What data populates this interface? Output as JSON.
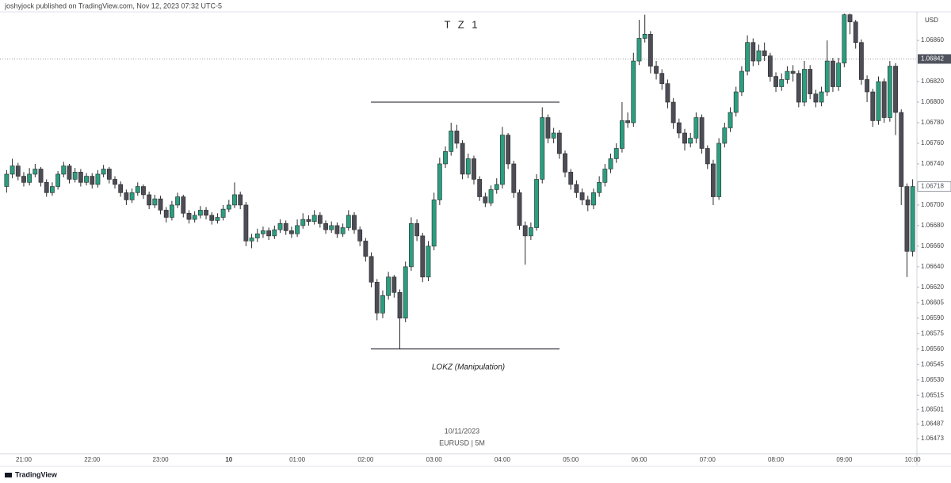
{
  "header": "joshyjock published on TradingView.com, Nov 12, 2023 07:32 UTC-5",
  "footer": "TradingView",
  "chart_data": {
    "type": "candlestick",
    "title": "T Z 1",
    "annotation": "LOKZ (Manipulation)",
    "watermark_date": "10/11/2023",
    "watermark_symbol": "EURUSD | 5M",
    "currency": "USD",
    "up_color": "#2b9e80",
    "down_color": "#4d4d57",
    "wick_color": "#2a2a2a",
    "grid": false,
    "levels": [
      1.068,
      1.0656
    ],
    "price_labels": [
      {
        "value": 1.06842,
        "label": "1.06842"
      },
      {
        "value": 1.06718,
        "label": "1.06718"
      }
    ],
    "ylim": [
      1.06459,
      1.06887
    ],
    "yticks": [
      {
        "value": 1.0686,
        "label": "1.06860"
      },
      {
        "value": 1.0682,
        "label": "1.06820"
      },
      {
        "value": 1.068,
        "label": "1.06800"
      },
      {
        "value": 1.0678,
        "label": "1.06780"
      },
      {
        "value": 1.0676,
        "label": "1.06760"
      },
      {
        "value": 1.0674,
        "label": "1.06740"
      },
      {
        "value": 1.067,
        "label": "1.06700"
      },
      {
        "value": 1.0668,
        "label": "1.06680"
      },
      {
        "value": 1.0666,
        "label": "1.06660"
      },
      {
        "value": 1.0664,
        "label": "1.06640"
      },
      {
        "value": 1.0662,
        "label": "1.06620"
      },
      1.06605,
      {
        "value": 1.0659,
        "label": "1.06590"
      },
      1.06575,
      {
        "value": 1.0656,
        "label": "1.06560"
      },
      1.06545,
      {
        "value": 1.0653,
        "label": "1.06530"
      },
      1.06515,
      1.06501,
      1.06487,
      1.06473
    ],
    "categories": [
      null,
      null,
      null,
      "21:00",
      null,
      null,
      null,
      null,
      null,
      null,
      null,
      null,
      null,
      null,
      null,
      "22:00",
      null,
      null,
      null,
      null,
      null,
      null,
      null,
      null,
      null,
      null,
      null,
      "23:00",
      null,
      null,
      null,
      null,
      null,
      null,
      null,
      null,
      null,
      null,
      null,
      "10",
      null,
      null,
      null,
      null,
      null,
      null,
      null,
      null,
      null,
      null,
      null,
      "01:00",
      null,
      null,
      null,
      null,
      null,
      null,
      null,
      null,
      null,
      null,
      null,
      "02:00",
      null,
      null,
      null,
      null,
      null,
      null,
      null,
      null,
      null,
      null,
      null,
      "03:00",
      null,
      null,
      null,
      null,
      null,
      null,
      null,
      null,
      null,
      null,
      null,
      "04:00",
      null,
      null,
      null,
      null,
      null,
      null,
      null,
      null,
      null,
      null,
      null,
      "05:00",
      null,
      null,
      null,
      null,
      null,
      null,
      null,
      null,
      null,
      null,
      null,
      "06:00",
      null,
      null,
      null,
      null,
      null,
      null,
      null,
      null,
      null,
      null,
      null,
      "07:00",
      null,
      null,
      null,
      null,
      null,
      null,
      null,
      null,
      null,
      null,
      null,
      "08:00",
      null,
      null,
      null,
      null,
      null,
      null,
      null,
      null,
      null,
      null,
      null,
      "09:00",
      null,
      null,
      null,
      null,
      null,
      null,
      null,
      null,
      null,
      null,
      null,
      "10:00"
    ],
    "open": [
      1.06718,
      1.0673,
      1.06738,
      1.06728,
      1.06722,
      1.0673,
      1.06735,
      1.06722,
      1.06712,
      1.06718,
      1.0673,
      1.06738,
      1.06725,
      1.06732,
      1.06722,
      1.06728,
      1.0672,
      1.0673,
      1.06735,
      1.06725,
      1.0672,
      1.06712,
      1.06705,
      1.06712,
      1.06718,
      1.0671,
      1.067,
      1.06706,
      1.06695,
      1.06688,
      1.067,
      1.06708,
      1.06692,
      1.06686,
      1.0669,
      1.06695,
      1.0669,
      1.06685,
      1.06688,
      1.06696,
      1.067,
      1.0671,
      1.067,
      1.06665,
      1.06668,
      1.06672,
      1.06675,
      1.0667,
      1.06676,
      1.06682,
      1.06675,
      1.06672,
      1.0668,
      1.06686,
      1.06684,
      1.0669,
      1.06682,
      1.06676,
      1.0668,
      1.06672,
      1.06678,
      1.0669,
      1.06676,
      1.06665,
      1.0665,
      1.06625,
      1.06595,
      1.06612,
      1.0663,
      1.06615,
      1.0659,
      1.0664,
      1.06682,
      1.0667,
      1.0663,
      1.0666,
      1.06705,
      1.0674,
      1.06752,
      1.06772,
      1.0676,
      1.0673,
      1.06745,
      1.06725,
      1.06708,
      1.06702,
      1.06715,
      1.0672,
      1.06768,
      1.0674,
      1.06712,
      1.0668,
      1.0667,
      1.06678,
      1.06725,
      1.06785,
      1.06765,
      1.0677,
      1.0675,
      1.06732,
      1.0672,
      1.06712,
      1.06705,
      1.067,
      1.06712,
      1.06722,
      1.06735,
      1.06745,
      1.06755,
      1.06782,
      1.0678,
      1.0684,
      1.06862,
      1.06866,
      1.06835,
      1.06828,
      1.06818,
      1.068,
      1.0678,
      1.0677,
      1.0676,
      1.06765,
      1.06785,
      1.06755,
      1.0674,
      1.06708,
      1.0676,
      1.06775,
      1.0679,
      1.0681,
      1.0683,
      1.06858,
      1.0684,
      1.0685,
      1.06845,
      1.06825,
      1.06815,
      1.06822,
      1.0683,
      1.06828,
      1.068,
      1.06832,
      1.06808,
      1.068,
      1.0681,
      1.0684,
      1.06815,
      1.06838,
      1.06885,
      1.06878,
      1.06858,
      1.06822,
      1.0681,
      1.06782,
      1.0682,
      1.06785,
      1.06835,
      1.0679,
      1.06718,
      1.06655
    ],
    "high": [
      1.06734,
      1.06745,
      1.06741,
      1.06732,
      1.06736,
      1.0674,
      1.06737,
      1.06725,
      1.06722,
      1.06733,
      1.06742,
      1.0674,
      1.06736,
      1.06735,
      1.06731,
      1.06731,
      1.06734,
      1.06739,
      1.06737,
      1.06728,
      1.06723,
      1.06715,
      1.06716,
      1.06722,
      1.0672,
      1.06713,
      1.0671,
      1.06709,
      1.06698,
      1.06704,
      1.06712,
      1.0671,
      1.06695,
      1.06694,
      1.06699,
      1.06698,
      1.06693,
      1.06692,
      1.067,
      1.06705,
      1.06722,
      1.06713,
      1.06703,
      1.06672,
      1.06677,
      1.06679,
      1.06678,
      1.0668,
      1.06686,
      1.06685,
      1.06679,
      1.06686,
      1.06692,
      1.0669,
      1.06695,
      1.06693,
      1.06685,
      1.06684,
      1.06683,
      1.06682,
      1.06695,
      1.06693,
      1.06679,
      1.06668,
      1.06654,
      1.06628,
      1.06617,
      1.06635,
      1.06632,
      1.06618,
      1.06645,
      1.06688,
      1.06686,
      1.06673,
      1.06665,
      1.06712,
      1.06746,
      1.06757,
      1.0678,
      1.06778,
      1.06763,
      1.0675,
      1.06748,
      1.06728,
      1.06712,
      1.06719,
      1.06726,
      1.06776,
      1.0677,
      1.06743,
      1.06715,
      1.06684,
      1.06683,
      1.0673,
      1.06795,
      1.06788,
      1.06775,
      1.06773,
      1.06753,
      1.06735,
      1.06724,
      1.06716,
      1.06709,
      1.06716,
      1.06728,
      1.0674,
      1.0675,
      1.0676,
      1.068,
      1.0679,
      1.06848,
      1.0688,
      1.06885,
      1.06869,
      1.0684,
      1.06832,
      1.06822,
      1.06804,
      1.06784,
      1.06774,
      1.0677,
      1.0679,
      1.06788,
      1.06758,
      1.06744,
      1.06765,
      1.0678,
      1.06795,
      1.06815,
      1.06835,
      1.06865,
      1.06862,
      1.06856,
      1.06858,
      1.06848,
      1.06829,
      1.06828,
      1.06835,
      1.06836,
      1.06831,
      1.0684,
      1.06836,
      1.06812,
      1.06815,
      1.0686,
      1.06843,
      1.06843,
      1.06886,
      1.06886,
      1.0688,
      1.06861,
      1.06826,
      1.06813,
      1.06825,
      1.06823,
      1.0684,
      1.06838,
      1.06793,
      1.06721,
      1.06725
    ],
    "low": [
      1.06712,
      1.06726,
      1.06724,
      1.06718,
      1.06719,
      1.06727,
      1.06718,
      1.06708,
      1.06709,
      1.06715,
      1.06727,
      1.06721,
      1.06722,
      1.06718,
      1.06719,
      1.06716,
      1.06717,
      1.06727,
      1.06721,
      1.06716,
      1.06708,
      1.067,
      1.06702,
      1.06709,
      1.06706,
      1.06696,
      1.06697,
      1.06691,
      1.06683,
      1.06685,
      1.06697,
      1.06688,
      1.06682,
      1.06683,
      1.06687,
      1.06686,
      1.06681,
      1.06682,
      1.06685,
      1.06693,
      1.06697,
      1.06696,
      1.0666,
      1.06658,
      1.06664,
      1.06668,
      1.06666,
      1.06667,
      1.06673,
      1.06671,
      1.06668,
      1.06669,
      1.06677,
      1.0668,
      1.06681,
      1.06678,
      1.06672,
      1.06673,
      1.06668,
      1.06669,
      1.06675,
      1.06672,
      1.0666,
      1.06645,
      1.0662,
      1.06588,
      1.0659,
      1.06608,
      1.0661,
      1.0656,
      1.06586,
      1.06636,
      1.06665,
      1.06625,
      1.06626,
      1.06656,
      1.067,
      1.06736,
      1.06748,
      1.06755,
      1.06725,
      1.06726,
      1.0672,
      1.06704,
      1.06698,
      1.06699,
      1.06711,
      1.06716,
      1.06735,
      1.06707,
      1.06676,
      1.06642,
      1.06666,
      1.06675,
      1.06721,
      1.0676,
      1.0676,
      1.06745,
      1.06727,
      1.06715,
      1.06707,
      1.067,
      1.06694,
      1.06696,
      1.06708,
      1.06718,
      1.06731,
      1.06741,
      1.06751,
      1.06775,
      1.06776,
      1.06836,
      1.06858,
      1.06828,
      1.06822,
      1.06812,
      1.06794,
      1.06774,
      1.06765,
      1.06753,
      1.06756,
      1.0676,
      1.0675,
      1.06735,
      1.067,
      1.06705,
      1.06756,
      1.06771,
      1.06786,
      1.06806,
      1.06826,
      1.06835,
      1.06836,
      1.0684,
      1.0682,
      1.0681,
      1.06811,
      1.06818,
      1.0682,
      1.06795,
      1.06796,
      1.06803,
      1.06795,
      1.06796,
      1.06806,
      1.0681,
      1.06811,
      1.06834,
      1.06866,
      1.06852,
      1.06817,
      1.068,
      1.06776,
      1.06778,
      1.0678,
      1.06781,
      1.06768,
      1.067,
      1.0663,
      1.0665
    ],
    "close": [
      1.0673,
      1.06738,
      1.06728,
      1.06722,
      1.0673,
      1.06735,
      1.06722,
      1.06712,
      1.06718,
      1.0673,
      1.06738,
      1.06725,
      1.06732,
      1.06722,
      1.06728,
      1.0672,
      1.0673,
      1.06735,
      1.06725,
      1.0672,
      1.06712,
      1.06705,
      1.06712,
      1.06718,
      1.0671,
      1.067,
      1.06706,
      1.06695,
      1.06688,
      1.067,
      1.06708,
      1.06692,
      1.06686,
      1.0669,
      1.06695,
      1.0669,
      1.06685,
      1.06688,
      1.06696,
      1.067,
      1.0671,
      1.067,
      1.06665,
      1.06668,
      1.06672,
      1.06675,
      1.0667,
      1.06676,
      1.06682,
      1.06675,
      1.06672,
      1.0668,
      1.06686,
      1.06684,
      1.0669,
      1.06682,
      1.06676,
      1.0668,
      1.06672,
      1.06678,
      1.0669,
      1.06676,
      1.06665,
      1.0665,
      1.06625,
      1.06595,
      1.06612,
      1.0663,
      1.06615,
      1.0659,
      1.0664,
      1.06682,
      1.0667,
      1.0663,
      1.0666,
      1.06705,
      1.0674,
      1.06752,
      1.06772,
      1.0676,
      1.0673,
      1.06745,
      1.06725,
      1.06708,
      1.06702,
      1.06715,
      1.0672,
      1.06768,
      1.0674,
      1.06712,
      1.0668,
      1.0667,
      1.06678,
      1.06725,
      1.06785,
      1.06765,
      1.0677,
      1.0675,
      1.06732,
      1.0672,
      1.06712,
      1.06705,
      1.067,
      1.06712,
      1.06722,
      1.06735,
      1.06745,
      1.06755,
      1.06782,
      1.0678,
      1.0684,
      1.06862,
      1.06866,
      1.06835,
      1.06828,
      1.06818,
      1.068,
      1.0678,
      1.0677,
      1.0676,
      1.06765,
      1.06785,
      1.06755,
      1.0674,
      1.06708,
      1.0676,
      1.06775,
      1.0679,
      1.0681,
      1.0683,
      1.06858,
      1.0684,
      1.0685,
      1.06845,
      1.06825,
      1.06815,
      1.06822,
      1.0683,
      1.06828,
      1.068,
      1.06832,
      1.06808,
      1.068,
      1.0681,
      1.0684,
      1.06815,
      1.06838,
      1.06885,
      1.06878,
      1.06858,
      1.06822,
      1.0681,
      1.06782,
      1.0682,
      1.06785,
      1.06835,
      1.0679,
      1.06718,
      1.06655,
      1.06718
    ]
  }
}
